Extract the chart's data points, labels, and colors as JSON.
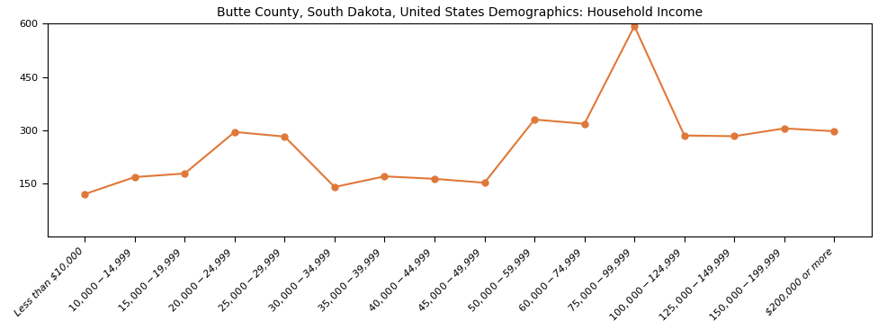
{
  "title": "Butte County, South Dakota, United States Demographics: Household Income",
  "categories": [
    "Less than $10,000",
    "$10,000 - $14,999",
    "$15,000 - $19,999",
    "$20,000 - $24,999",
    "$25,000 - $29,999",
    "$30,000 - $34,999",
    "$35,000 - $39,999",
    "$40,000 - $44,999",
    "$45,000 - $49,999",
    "$50,000 - $59,999",
    "$60,000 - $74,999",
    "$75,000 - $99,999",
    "$100,000 - $124,999",
    "$125,000 - $149,999",
    "$150,000 - $199,999",
    "$200,000 or more"
  ],
  "values": [
    120,
    168,
    178,
    295,
    282,
    140,
    170,
    163,
    152,
    330,
    318,
    593,
    285,
    283,
    305,
    297
  ],
  "line_color": "#e07838",
  "marker_color": "#e07838",
  "ylim": [
    0,
    600
  ],
  "yticks": [
    150,
    300,
    450,
    600
  ],
  "background_color": "#ffffff",
  "title_fontsize": 10,
  "tick_fontsize": 8
}
